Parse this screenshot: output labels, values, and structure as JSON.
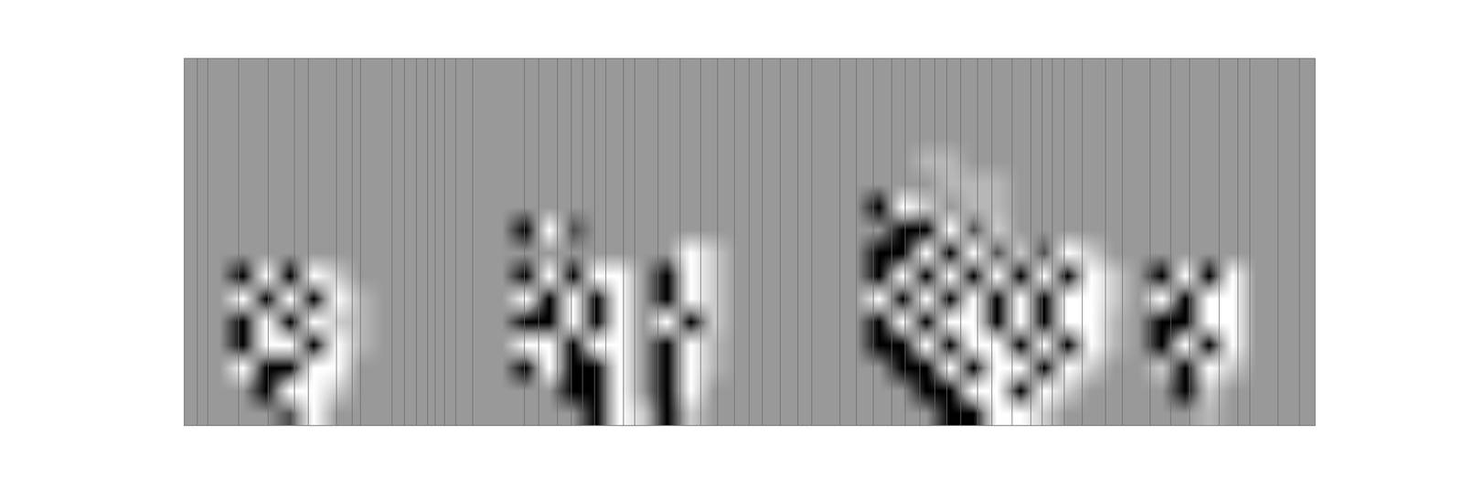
{
  "chart_data": {
    "type": "heatmap",
    "xlim": [
      0,
      48
    ],
    "ylim": [
      0,
      16
    ],
    "tick_labels": false,
    "grid": false,
    "color_range": [
      -1,
      1
    ],
    "vlines": [
      0.55,
      0.99,
      2.3,
      3.56,
      4.67,
      5.26,
      6.45,
      7.12,
      7.48,
      8.82,
      9.34,
      9.85,
      10.33,
      10.64,
      11.04,
      11.52,
      12.23,
      14.44,
      15.04,
      15.83,
      16.42,
      16.9,
      17.41,
      17.89,
      18.64,
      19.11,
      20.1,
      21.05,
      21.92,
      22.64,
      23.35,
      23.98,
      24.53,
      25.29,
      26.04,
      26.63,
      27.82,
      28.53,
      29.24,
      30.03,
      30.59,
      31.22,
      31.85,
      32.37,
      32.96,
      33.67,
      34.27,
      35.14,
      35.93,
      36.4,
      36.84,
      37.35,
      38.11,
      39.1,
      39.81,
      41.0,
      41.87,
      42.66,
      43.92,
      44.72,
      45.23,
      46.42,
      47.33
    ],
    "cells": [
      [
        0,
        0,
        0,
        0,
        0,
        0,
        0,
        0,
        0,
        0,
        0,
        0,
        0,
        0,
        0,
        0,
        0,
        0,
        0,
        0,
        0,
        0,
        0,
        0,
        0,
        0,
        0,
        0,
        0,
        0,
        0,
        0,
        0,
        0,
        0,
        0,
        0,
        0,
        0,
        0,
        0,
        0,
        0,
        0,
        0,
        0,
        0,
        0
      ],
      [
        0,
        0,
        0,
        0,
        0,
        0,
        0,
        0,
        0,
        0,
        0,
        0,
        0,
        0,
        0,
        0,
        0,
        0,
        0,
        0,
        0,
        0,
        0,
        0,
        0,
        0,
        0,
        0,
        0,
        0,
        0,
        0,
        0,
        0,
        0,
        0,
        0,
        0,
        0,
        0,
        0,
        0,
        0,
        0,
        0,
        0,
        0,
        0
      ],
      [
        0,
        0,
        0,
        0,
        0,
        0,
        0,
        0,
        0,
        0,
        0,
        0,
        0,
        0,
        0,
        0,
        0,
        0,
        0,
        0,
        0,
        0,
        0,
        0,
        0,
        0,
        0,
        0,
        0,
        0,
        0,
        0,
        0,
        0,
        0,
        0,
        0,
        0,
        0,
        0,
        0,
        0,
        0,
        0,
        0,
        0,
        0,
        0
      ],
      [
        0,
        0,
        0,
        0,
        0,
        0,
        0,
        0,
        0,
        0,
        0,
        0,
        0,
        0,
        0,
        0,
        0,
        0,
        0,
        0,
        0,
        0,
        0,
        0,
        0,
        0,
        0,
        0,
        0,
        0,
        0,
        0,
        0,
        0,
        0,
        0,
        0,
        0,
        0,
        0,
        0,
        0,
        0,
        0,
        0,
        0,
        0,
        0
      ],
      [
        0,
        0,
        0,
        0,
        0,
        0,
        0,
        0,
        0,
        0,
        0,
        0,
        0,
        0,
        0,
        0,
        0,
        0,
        0,
        0,
        0,
        0,
        0,
        0,
        0,
        0,
        0,
        0,
        0,
        0,
        0,
        0.3,
        0.3,
        0,
        0,
        0,
        0,
        0,
        0,
        0,
        0,
        0,
        0,
        0,
        0,
        0,
        0,
        0
      ],
      [
        0,
        0,
        0,
        0,
        0,
        0,
        0,
        0,
        0,
        0,
        0,
        0,
        0,
        0,
        0,
        0,
        0,
        0,
        0,
        0,
        0,
        0,
        0,
        0,
        0,
        0,
        0,
        0,
        0,
        0,
        0,
        0,
        0.3,
        0.3,
        0.3,
        0,
        0,
        0,
        0,
        0,
        0,
        0,
        0,
        0,
        0,
        0,
        0,
        0
      ],
      [
        0,
        0,
        0,
        0,
        0,
        0,
        0,
        0,
        0,
        0,
        0,
        0,
        0,
        0,
        0,
        0,
        0,
        0,
        0,
        0,
        0,
        0,
        0,
        0,
        0,
        0,
        0,
        0,
        0,
        -1,
        1,
        0.5,
        0,
        0.3,
        0.3,
        0,
        0,
        0,
        0,
        0,
        0,
        0,
        0,
        0,
        0,
        0,
        0,
        0
      ],
      [
        0,
        0,
        0,
        0,
        0,
        0,
        0,
        0,
        0,
        0,
        0,
        0,
        0,
        0,
        -1,
        1,
        -0.5,
        0,
        0,
        0,
        0,
        0,
        0,
        0,
        0,
        0,
        0,
        0,
        0,
        0,
        -1,
        -1,
        1,
        -0.5,
        0.5,
        0,
        0,
        0,
        0,
        0,
        0,
        0,
        0,
        0,
        0,
        0,
        0,
        0
      ],
      [
        0,
        0,
        0,
        0,
        0,
        0,
        0,
        0,
        0,
        0,
        0,
        0,
        0,
        0,
        0,
        0,
        0,
        0,
        0,
        0,
        0,
        1,
        0.5,
        0,
        0,
        0,
        0,
        0,
        0,
        -1,
        -1,
        1,
        -1,
        1,
        -0.5,
        0.5,
        -0.5,
        1,
        0.5,
        0,
        0,
        0,
        0,
        0,
        0,
        0,
        0,
        0
      ],
      [
        0,
        0,
        -1,
        1,
        -1,
        1,
        0.5,
        0,
        0,
        0,
        0,
        0,
        0,
        0,
        -1,
        1,
        -1,
        1,
        1,
        0,
        -1,
        1,
        0.5,
        0,
        0,
        0,
        0,
        0,
        0,
        -1,
        1,
        -1,
        1,
        -1,
        1,
        -1,
        1,
        -1,
        1,
        0.5,
        0,
        -1,
        1,
        -1,
        1,
        0,
        0,
        0
      ],
      [
        0,
        0,
        1,
        -1,
        1,
        -1,
        1,
        0.3,
        0,
        0,
        0,
        0,
        0,
        0,
        1,
        -1,
        1,
        -1,
        1,
        0,
        -1,
        1,
        0.5,
        0,
        0,
        0,
        0,
        0,
        0,
        1,
        -1,
        1,
        -1,
        1,
        -1,
        1,
        -1,
        1,
        1,
        0.5,
        0,
        1,
        -1,
        1,
        1,
        0,
        0,
        0
      ],
      [
        0,
        0,
        -1,
        1,
        -1,
        1,
        0.5,
        0.3,
        0,
        0,
        0,
        0,
        0,
        0,
        -1,
        -1,
        1,
        -1,
        1,
        0,
        1,
        -1,
        0.5,
        0,
        0,
        0,
        0,
        0,
        0,
        -1,
        1,
        -1,
        1,
        1,
        -1,
        1,
        -1,
        1,
        1,
        0.3,
        0,
        -1,
        -1,
        1,
        1,
        0,
        0,
        0
      ],
      [
        0,
        0,
        -1,
        1,
        1,
        -1,
        1,
        0.3,
        0,
        0,
        0,
        0,
        0,
        0,
        1,
        1,
        -1,
        1,
        1,
        0,
        -1,
        1,
        0.3,
        0,
        0,
        0,
        0,
        0,
        0,
        -1,
        -1,
        1,
        -1,
        1,
        1,
        -1,
        1,
        -1,
        1,
        0.3,
        0,
        -1,
        1,
        -1,
        1,
        0,
        0,
        0
      ],
      [
        0,
        0,
        1,
        -1,
        -1,
        1,
        1,
        0,
        0,
        0,
        0,
        0,
        0,
        0,
        -1,
        1,
        -1,
        -1,
        1,
        0,
        -1,
        1,
        0.3,
        0,
        0,
        0,
        0,
        0,
        0,
        0,
        -1,
        -1,
        1,
        -1,
        1,
        1,
        -1,
        1,
        0.5,
        0,
        0,
        0.5,
        -1,
        1,
        0.5,
        0,
        0,
        0
      ],
      [
        0,
        0,
        0,
        -1,
        1,
        1,
        0.5,
        0,
        0,
        0,
        0,
        0,
        0,
        0,
        0,
        0,
        -1,
        -1,
        1,
        0,
        -1,
        1,
        0,
        0,
        0,
        0,
        0,
        0,
        0,
        0,
        0,
        -1,
        -1,
        1,
        1,
        -1,
        1,
        0.5,
        0,
        0,
        0,
        0,
        -1,
        0.5,
        0,
        0,
        0,
        0
      ],
      [
        0,
        0,
        0,
        0,
        -0.5,
        1,
        0,
        0,
        0,
        0,
        0,
        0,
        0,
        0,
        0,
        0,
        0,
        -1,
        1,
        0.5,
        -1,
        0.5,
        0,
        0,
        0,
        0,
        0,
        0,
        0,
        0,
        0,
        0,
        -1,
        -1,
        1,
        1,
        0.5,
        0,
        0,
        0,
        0,
        0,
        0,
        0.3,
        0,
        0,
        0,
        0
      ]
    ]
  }
}
